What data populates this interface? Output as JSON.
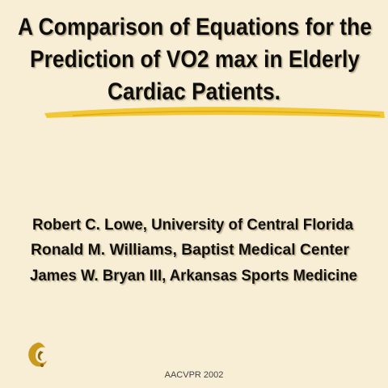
{
  "slide": {
    "title_lines": [
      "A Comparison of Equations for the",
      "Prediction of VO2 max in Elderly",
      "Cardiac Patients."
    ],
    "authors": [
      "Robert C. Lowe, University of Central Florida",
      "Ronald M. Williams, Baptist Medical Center",
      "James W. Bryan III, Arkansas Sports Medicine"
    ],
    "footer": "AACVPR 2002"
  }
}
